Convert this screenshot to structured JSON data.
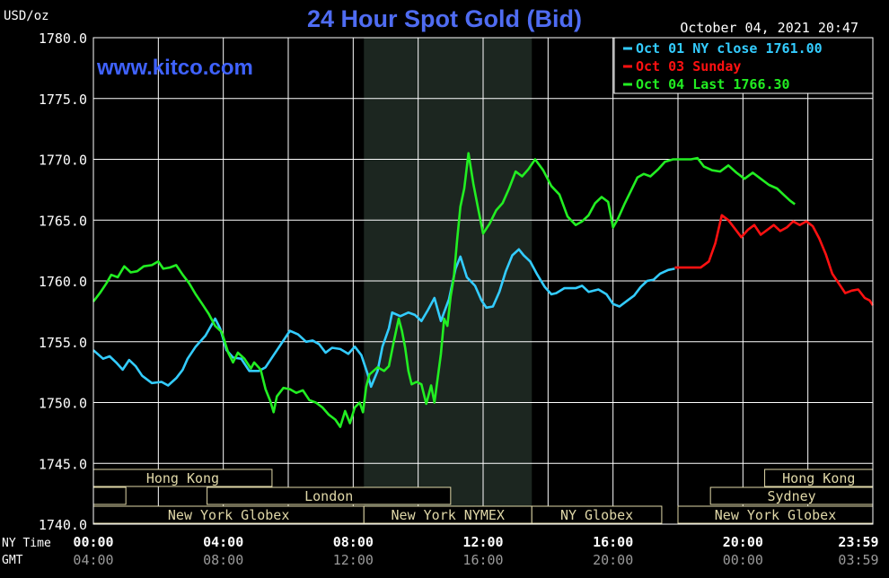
{
  "header": {
    "title": "24 Hour Spot Gold (Bid)",
    "unit": "USD/oz",
    "datetime": "October 04, 2021 20:47",
    "watermark": "www.kitco.com"
  },
  "colors": {
    "title": "#4f6cf2",
    "oct01": "#33ccff",
    "oct03": "#ff1111",
    "oct04": "#22ee22",
    "grid": "#ffffff",
    "session_box": "#e0d8a8",
    "shade": "#1c2620"
  },
  "chart_data": {
    "type": "line",
    "ylim": [
      1740,
      1780
    ],
    "yticks": [
      "1780.0",
      "1775.0",
      "1770.0",
      "1765.0",
      "1760.0",
      "1755.0",
      "1750.0",
      "1745.0",
      "1740.0"
    ],
    "x_range_hours": [
      0,
      24
    ],
    "x_row_labels": {
      "ny": "NY Time",
      "gmt": "GMT"
    },
    "xticks_ny": [
      "00:00",
      "04:00",
      "08:00",
      "12:00",
      "16:00",
      "20:00",
      "23:59"
    ],
    "xticks_gmt": [
      "04:00",
      "08:00",
      "12:00",
      "16:00",
      "20:00",
      "00:00",
      "03:59"
    ],
    "legend": [
      {
        "label": "Oct 01 NY close 1761.00",
        "color": "#33ccff"
      },
      {
        "label": "Oct 03 Sunday",
        "color": "#ff1111"
      },
      {
        "label": "Oct 04 Last 1766.30",
        "color": "#22ee22"
      }
    ],
    "shaded_session_hours": [
      8.33,
      13.5
    ],
    "sessions": [
      {
        "label": "Hong Kong",
        "row": 0,
        "start": 0,
        "end": 5.5
      },
      {
        "label": "Hong Kong",
        "row": 0,
        "start": 20.67,
        "end": 24
      },
      {
        "label": "",
        "row": 1,
        "start": 0,
        "end": 1
      },
      {
        "label": "London",
        "row": 1,
        "start": 3.5,
        "end": 11
      },
      {
        "label": "Sydney",
        "row": 1,
        "start": 19,
        "end": 24
      },
      {
        "label": "New York Globex",
        "row": 2,
        "start": 0,
        "end": 8.33
      },
      {
        "label": "New York NYMEX",
        "row": 2,
        "start": 8.33,
        "end": 13.5
      },
      {
        "label": "NY Globex",
        "row": 2,
        "start": 13.5,
        "end": 17.5
      },
      {
        "label": "New York Globex",
        "row": 2,
        "start": 18,
        "end": 24
      }
    ],
    "series": [
      {
        "name": "Oct 01 NY close 1761.00",
        "color": "#33ccff",
        "points": [
          [
            0,
            1754.3
          ],
          [
            0.3,
            1753.6
          ],
          [
            0.5,
            1753.8
          ],
          [
            0.7,
            1753.3
          ],
          [
            0.9,
            1752.7
          ],
          [
            1.1,
            1753.5
          ],
          [
            1.3,
            1753.0
          ],
          [
            1.5,
            1752.2
          ],
          [
            1.8,
            1751.6
          ],
          [
            2.1,
            1751.7
          ],
          [
            2.3,
            1751.4
          ],
          [
            2.55,
            1752.0
          ],
          [
            2.75,
            1752.7
          ],
          [
            2.9,
            1753.6
          ],
          [
            3.15,
            1754.6
          ],
          [
            3.45,
            1755.5
          ],
          [
            3.75,
            1756.9
          ],
          [
            3.9,
            1756.1
          ],
          [
            4.1,
            1754.3
          ],
          [
            4.3,
            1753.7
          ],
          [
            4.55,
            1753.6
          ],
          [
            4.8,
            1752.6
          ],
          [
            5.1,
            1752.6
          ],
          [
            5.3,
            1752.9
          ],
          [
            5.55,
            1753.9
          ],
          [
            5.8,
            1754.9
          ],
          [
            6.05,
            1755.9
          ],
          [
            6.3,
            1755.6
          ],
          [
            6.55,
            1755.0
          ],
          [
            6.75,
            1755.1
          ],
          [
            6.95,
            1754.8
          ],
          [
            7.15,
            1754.1
          ],
          [
            7.35,
            1754.5
          ],
          [
            7.6,
            1754.4
          ],
          [
            7.85,
            1754.0
          ],
          [
            8.05,
            1754.6
          ],
          [
            8.25,
            1753.9
          ],
          [
            8.45,
            1752.3
          ],
          [
            8.55,
            1751.3
          ],
          [
            8.75,
            1752.6
          ],
          [
            8.9,
            1754.6
          ],
          [
            9.1,
            1756.1
          ],
          [
            9.2,
            1757.4
          ],
          [
            9.45,
            1757.1
          ],
          [
            9.7,
            1757.4
          ],
          [
            9.9,
            1757.2
          ],
          [
            10.1,
            1756.7
          ],
          [
            10.3,
            1757.6
          ],
          [
            10.5,
            1758.6
          ],
          [
            10.7,
            1756.7
          ],
          [
            10.95,
            1758.5
          ],
          [
            11.15,
            1761.0
          ],
          [
            11.3,
            1762.0
          ],
          [
            11.5,
            1760.3
          ],
          [
            11.75,
            1759.6
          ],
          [
            11.95,
            1758.4
          ],
          [
            12.1,
            1757.8
          ],
          [
            12.3,
            1757.9
          ],
          [
            12.5,
            1759.1
          ],
          [
            12.7,
            1760.8
          ],
          [
            12.9,
            1762.1
          ],
          [
            13.1,
            1762.6
          ],
          [
            13.25,
            1762.1
          ],
          [
            13.45,
            1761.6
          ],
          [
            13.65,
            1760.6
          ],
          [
            13.9,
            1759.5
          ],
          [
            14.1,
            1758.9
          ],
          [
            14.25,
            1759.0
          ],
          [
            14.5,
            1759.4
          ],
          [
            14.85,
            1759.4
          ],
          [
            15.05,
            1759.6
          ],
          [
            15.25,
            1759.1
          ],
          [
            15.55,
            1759.3
          ],
          [
            15.8,
            1758.9
          ],
          [
            16.0,
            1758.1
          ],
          [
            16.2,
            1757.9
          ],
          [
            16.45,
            1758.4
          ],
          [
            16.65,
            1758.8
          ],
          [
            16.85,
            1759.5
          ],
          [
            17.05,
            1760.0
          ],
          [
            17.25,
            1760.1
          ],
          [
            17.45,
            1760.6
          ],
          [
            17.7,
            1760.9
          ],
          [
            17.9,
            1761.0
          ]
        ]
      },
      {
        "name": "Oct 03 Sunday",
        "color": "#ff1111",
        "points": [
          [
            17.9,
            1761.1
          ],
          [
            18.3,
            1761.1
          ],
          [
            18.7,
            1761.1
          ],
          [
            18.95,
            1761.6
          ],
          [
            19.15,
            1763.1
          ],
          [
            19.35,
            1765.4
          ],
          [
            19.55,
            1765.0
          ],
          [
            19.75,
            1764.3
          ],
          [
            19.95,
            1763.6
          ],
          [
            20.15,
            1764.2
          ],
          [
            20.35,
            1764.6
          ],
          [
            20.55,
            1763.8
          ],
          [
            20.75,
            1764.2
          ],
          [
            20.95,
            1764.6
          ],
          [
            21.15,
            1764.1
          ],
          [
            21.35,
            1764.4
          ],
          [
            21.55,
            1764.9
          ],
          [
            21.75,
            1764.6
          ],
          [
            21.95,
            1764.9
          ],
          [
            22.15,
            1764.5
          ],
          [
            22.35,
            1763.5
          ],
          [
            22.55,
            1762.2
          ],
          [
            22.75,
            1760.6
          ],
          [
            22.95,
            1759.8
          ],
          [
            23.15,
            1759.0
          ],
          [
            23.35,
            1759.2
          ],
          [
            23.55,
            1759.3
          ],
          [
            23.75,
            1758.6
          ],
          [
            23.9,
            1758.4
          ],
          [
            24.0,
            1758.0
          ]
        ]
      },
      {
        "name": "Oct 04 Last 1766.30",
        "color": "#22ee22",
        "points": [
          [
            0,
            1758.3
          ],
          [
            0.2,
            1759.0
          ],
          [
            0.4,
            1759.8
          ],
          [
            0.55,
            1760.5
          ],
          [
            0.75,
            1760.3
          ],
          [
            0.95,
            1761.2
          ],
          [
            1.15,
            1760.7
          ],
          [
            1.35,
            1760.8
          ],
          [
            1.55,
            1761.2
          ],
          [
            1.8,
            1761.3
          ],
          [
            2.0,
            1761.6
          ],
          [
            2.15,
            1761.0
          ],
          [
            2.35,
            1761.1
          ],
          [
            2.55,
            1761.3
          ],
          [
            2.75,
            1760.5
          ],
          [
            2.95,
            1759.8
          ],
          [
            3.15,
            1758.9
          ],
          [
            3.35,
            1758.1
          ],
          [
            3.55,
            1757.3
          ],
          [
            3.75,
            1756.3
          ],
          [
            3.95,
            1755.8
          ],
          [
            4.15,
            1754.1
          ],
          [
            4.3,
            1753.3
          ],
          [
            4.45,
            1754.1
          ],
          [
            4.65,
            1753.6
          ],
          [
            4.85,
            1752.8
          ],
          [
            4.95,
            1753.3
          ],
          [
            5.15,
            1752.7
          ],
          [
            5.3,
            1751.1
          ],
          [
            5.45,
            1750.1
          ],
          [
            5.55,
            1749.2
          ],
          [
            5.65,
            1750.5
          ],
          [
            5.85,
            1751.2
          ],
          [
            6.05,
            1751.1
          ],
          [
            6.25,
            1750.8
          ],
          [
            6.45,
            1751.0
          ],
          [
            6.65,
            1750.2
          ],
          [
            6.85,
            1750.0
          ],
          [
            7.05,
            1749.6
          ],
          [
            7.25,
            1749.0
          ],
          [
            7.45,
            1748.6
          ],
          [
            7.6,
            1748.0
          ],
          [
            7.75,
            1749.3
          ],
          [
            7.9,
            1748.3
          ],
          [
            8.05,
            1749.6
          ],
          [
            8.2,
            1750.0
          ],
          [
            8.3,
            1749.2
          ],
          [
            8.4,
            1751.3
          ],
          [
            8.5,
            1752.3
          ],
          [
            8.75,
            1752.9
          ],
          [
            8.95,
            1752.6
          ],
          [
            9.1,
            1753.0
          ],
          [
            9.25,
            1755.0
          ],
          [
            9.4,
            1756.9
          ],
          [
            9.5,
            1755.9
          ],
          [
            9.6,
            1754.5
          ],
          [
            9.7,
            1752.6
          ],
          [
            9.8,
            1751.5
          ],
          [
            9.95,
            1751.7
          ],
          [
            10.1,
            1751.5
          ],
          [
            10.25,
            1749.9
          ],
          [
            10.4,
            1751.4
          ],
          [
            10.5,
            1750.0
          ],
          [
            10.6,
            1752.0
          ],
          [
            10.7,
            1754.0
          ],
          [
            10.8,
            1756.9
          ],
          [
            10.9,
            1756.3
          ],
          [
            11.0,
            1758.7
          ],
          [
            11.1,
            1760.3
          ],
          [
            11.2,
            1763.4
          ],
          [
            11.3,
            1766.1
          ],
          [
            11.42,
            1767.6
          ],
          [
            11.55,
            1770.5
          ],
          [
            11.7,
            1768.0
          ],
          [
            11.85,
            1765.9
          ],
          [
            12.0,
            1763.9
          ],
          [
            12.2,
            1764.7
          ],
          [
            12.4,
            1765.8
          ],
          [
            12.6,
            1766.4
          ],
          [
            12.8,
            1767.6
          ],
          [
            13.0,
            1769.0
          ],
          [
            13.2,
            1768.6
          ],
          [
            13.4,
            1769.2
          ],
          [
            13.6,
            1770.0
          ],
          [
            13.85,
            1769.1
          ],
          [
            14.1,
            1767.8
          ],
          [
            14.35,
            1767.1
          ],
          [
            14.6,
            1765.3
          ],
          [
            14.85,
            1764.6
          ],
          [
            15.05,
            1764.9
          ],
          [
            15.25,
            1765.4
          ],
          [
            15.45,
            1766.4
          ],
          [
            15.65,
            1766.9
          ],
          [
            15.85,
            1766.5
          ],
          [
            16.0,
            1764.4
          ],
          [
            16.15,
            1765.1
          ],
          [
            16.35,
            1766.3
          ],
          [
            16.55,
            1767.4
          ],
          [
            16.75,
            1768.5
          ],
          [
            16.95,
            1768.8
          ],
          [
            17.15,
            1768.6
          ],
          [
            17.4,
            1769.2
          ],
          [
            17.6,
            1769.8
          ],
          [
            17.85,
            1770.0
          ],
          [
            18.1,
            1770.0
          ],
          [
            18.4,
            1770.0
          ],
          [
            18.6,
            1770.1
          ],
          [
            18.8,
            1769.4
          ],
          [
            19.05,
            1769.1
          ],
          [
            19.3,
            1769.0
          ],
          [
            19.55,
            1769.5
          ],
          [
            19.8,
            1768.9
          ],
          [
            20.05,
            1768.4
          ],
          [
            20.3,
            1768.9
          ],
          [
            20.55,
            1768.4
          ],
          [
            20.8,
            1767.9
          ],
          [
            21.05,
            1767.6
          ],
          [
            21.25,
            1767.1
          ],
          [
            21.45,
            1766.6
          ],
          [
            21.6,
            1766.3
          ]
        ]
      }
    ]
  }
}
